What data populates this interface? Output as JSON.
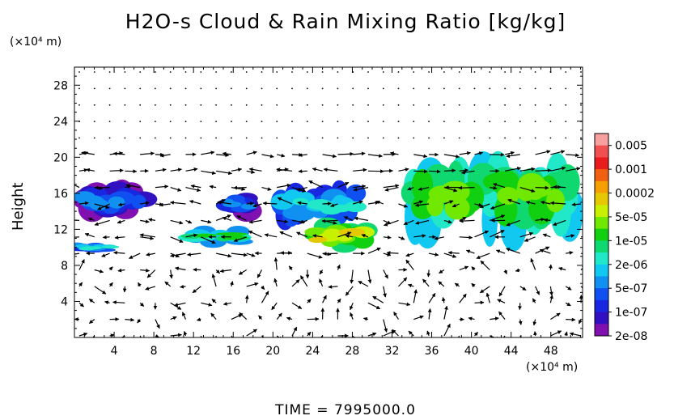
{
  "title": "H2O-s Cloud & Rain Mixing Ratio [kg/kg]",
  "time_label": "TIME = 7995000.0",
  "chart_data": {
    "type": "heatmap",
    "title": "H2O-s Cloud & Rain Mixing Ratio [kg/kg]",
    "xlabel": "",
    "ylabel": "Height",
    "x_unit": "(×10⁴ m)",
    "y_unit": "(×10⁴ m)",
    "xlim": [
      0,
      51.2
    ],
    "ylim": [
      0,
      30
    ],
    "x_ticks": [
      4,
      8,
      12,
      16,
      20,
      24,
      28,
      32,
      36,
      40,
      44,
      48
    ],
    "y_ticks": [
      4,
      8,
      12,
      16,
      20,
      24,
      28
    ],
    "colorbar": {
      "labels": [
        "0.005",
        "0.001",
        "0.0002",
        "5e-05",
        "1e-05",
        "2e-06",
        "5e-07",
        "1e-07",
        "2e-08"
      ],
      "colors": [
        "#f6a0a0",
        "#f05050",
        "#e81c1c",
        "#f06010",
        "#f5a000",
        "#e6c800",
        "#c8f000",
        "#70e800",
        "#10d010",
        "#10d870",
        "#20e8c8",
        "#10c8f0",
        "#1090f0",
        "#1050f0",
        "#1828e0",
        "#3010c0",
        "#8010b0"
      ]
    },
    "overlay": "wind vectors",
    "cloud_regions": [
      {
        "x": [
          0,
          7.5
        ],
        "y": [
          13.5,
          17
        ],
        "level": "5e-07"
      },
      {
        "x": [
          15,
          18.5
        ],
        "y": [
          13.5,
          16
        ],
        "level": "5e-07"
      },
      {
        "x": [
          20,
          29
        ],
        "y": [
          13,
          16.5
        ],
        "level": "2e-06"
      },
      {
        "x": [
          33,
          51.2
        ],
        "y": [
          12,
          19
        ],
        "level": "5e-05"
      },
      {
        "x": [
          11,
          17
        ],
        "y": [
          10.5,
          12
        ],
        "level": "1e-05"
      },
      {
        "x": [
          24,
          30
        ],
        "y": [
          10,
          12.5
        ],
        "level": "0.0002"
      },
      {
        "x": [
          0,
          4
        ],
        "y": [
          9.5,
          10.5
        ],
        "level": "5e-06"
      }
    ]
  }
}
